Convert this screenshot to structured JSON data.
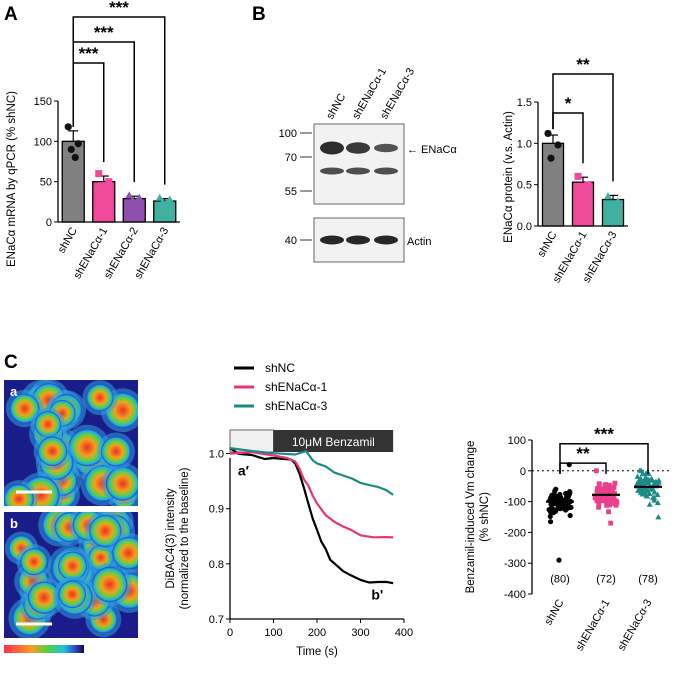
{
  "panels": {
    "A": "A",
    "B": "B",
    "C": "C"
  },
  "chart_data": [
    {
      "id": "A",
      "type": "bar",
      "ylabel": "ENaCα mRNA by qPCR (% shNC)",
      "ylim": [
        0,
        150
      ],
      "yticks": [
        "0",
        "50",
        "100",
        "150"
      ],
      "categories": [
        "shNC",
        "shENaCα-1",
        "shENaCα-2",
        "shENaCα-3"
      ],
      "values": [
        100,
        50,
        29,
        26
      ],
      "errors": [
        13,
        7,
        3,
        3
      ],
      "colors": [
        "#808080",
        "#f0489a",
        "#8e4fae",
        "#40b0a0"
      ],
      "points": [
        [
          118,
          97,
          90,
          80
        ],
        [
          60,
          50,
          45,
          38
        ],
        [
          33,
          30,
          27,
          24
        ],
        [
          30,
          28,
          25,
          24
        ]
      ],
      "significance": [
        {
          "from": 0,
          "to": 1,
          "label": "***"
        },
        {
          "from": 0,
          "to": 2,
          "label": "***"
        },
        {
          "from": 0,
          "to": 3,
          "label": "***"
        }
      ]
    },
    {
      "id": "B-blot",
      "type": "table",
      "lanes": [
        "shNC",
        "shENaCα-1",
        "shENaCα-3"
      ],
      "markers_top": [
        "100",
        "70",
        "55"
      ],
      "markers_bottom": [
        "40"
      ],
      "band_label_top": "← ENaCα",
      "band_label_bottom": "Actin"
    },
    {
      "id": "B",
      "type": "bar",
      "ylabel": "ENaCα protein (v.s. Actin)",
      "ylim": [
        0,
        1.5
      ],
      "yticks": [
        "0.0",
        "0.5",
        "1.0",
        "1.5"
      ],
      "categories": [
        "shNC",
        "shENaCα-1",
        "shENaCα-3"
      ],
      "values": [
        1.0,
        0.53,
        0.32
      ],
      "errors": [
        0.1,
        0.06,
        0.05
      ],
      "colors": [
        "#808080",
        "#f0489a",
        "#40b0a0"
      ],
      "points": [
        [
          1.12,
          0.98,
          0.82
        ],
        [
          0.6,
          0.5,
          0.48
        ],
        [
          0.36,
          0.3,
          0.24
        ]
      ],
      "significance": [
        {
          "from": 0,
          "to": 1,
          "label": "*"
        },
        {
          "from": 0,
          "to": 2,
          "label": "**"
        }
      ]
    },
    {
      "id": "C-images",
      "type": "heatmap",
      "labels": [
        "a",
        "b"
      ]
    },
    {
      "id": "C-trace",
      "type": "line",
      "xlabel": "Time (s)",
      "ylabel": "DiBAC4(3) intensity\n(normalized to the baseline)",
      "xlim": [
        0,
        400
      ],
      "ylim": [
        0.7,
        1.05
      ],
      "xticks": [
        "0",
        "100",
        "200",
        "300",
        "400"
      ],
      "yticks": [
        "0.7",
        "0.8",
        "0.9",
        "1.0"
      ],
      "annotation": "10μM Benzamil",
      "point_labels": [
        "a′",
        "b'"
      ],
      "series": [
        {
          "name": "shNC",
          "color": "#000000",
          "x": [
            0,
            20,
            50,
            80,
            100,
            120,
            140,
            150,
            160,
            170,
            180,
            190,
            200,
            210,
            220,
            230,
            240,
            250,
            260,
            280,
            300,
            320,
            340,
            360,
            375
          ],
          "y": [
            1.01,
            1.0,
            0.995,
            0.99,
            0.99,
            0.99,
            0.99,
            0.985,
            0.965,
            0.935,
            0.91,
            0.885,
            0.86,
            0.84,
            0.825,
            0.81,
            0.8,
            0.792,
            0.787,
            0.78,
            0.772,
            0.768,
            0.766,
            0.765,
            0.765
          ]
        },
        {
          "name": "shENaCα-1",
          "color": "#e8337a",
          "x": [
            0,
            50,
            100,
            130,
            150,
            160,
            170,
            180,
            190,
            200,
            220,
            240,
            260,
            280,
            300,
            330,
            360,
            375
          ],
          "y": [
            1.0,
            1.0,
            0.995,
            0.99,
            0.985,
            0.97,
            0.955,
            0.94,
            0.925,
            0.91,
            0.89,
            0.875,
            0.865,
            0.858,
            0.853,
            0.85,
            0.848,
            0.848
          ]
        },
        {
          "name": "shENaCα-3",
          "color": "#1e8a88",
          "x": [
            0,
            50,
            100,
            150,
            175,
            190,
            200,
            220,
            240,
            260,
            280,
            300,
            320,
            340,
            360,
            375
          ],
          "y": [
            1.01,
            1.005,
            1.0,
            1.0,
            1.005,
            0.99,
            0.985,
            0.975,
            0.965,
            0.958,
            0.952,
            0.948,
            0.945,
            0.94,
            0.932,
            0.925
          ]
        }
      ]
    },
    {
      "id": "C-scatter",
      "type": "scatter",
      "ylabel": "Benzamil-induced Vm change\n(% shNC)",
      "ylim": [
        -400,
        100
      ],
      "yticks": [
        "100",
        "0",
        "-100",
        "-200",
        "-300",
        "-400"
      ],
      "categories": [
        "shNC",
        "shENaCα-1",
        "shENaCα-3"
      ],
      "means": [
        -100,
        -78,
        -52
      ],
      "n_labels": [
        "(80)",
        "(72)",
        "(78)"
      ],
      "colors": [
        "#000000",
        "#ec3f8c",
        "#1e8a88"
      ],
      "significance": [
        {
          "from": 0,
          "to": 1,
          "label": "**"
        },
        {
          "from": 0,
          "to": 2,
          "label": "***"
        }
      ]
    }
  ]
}
